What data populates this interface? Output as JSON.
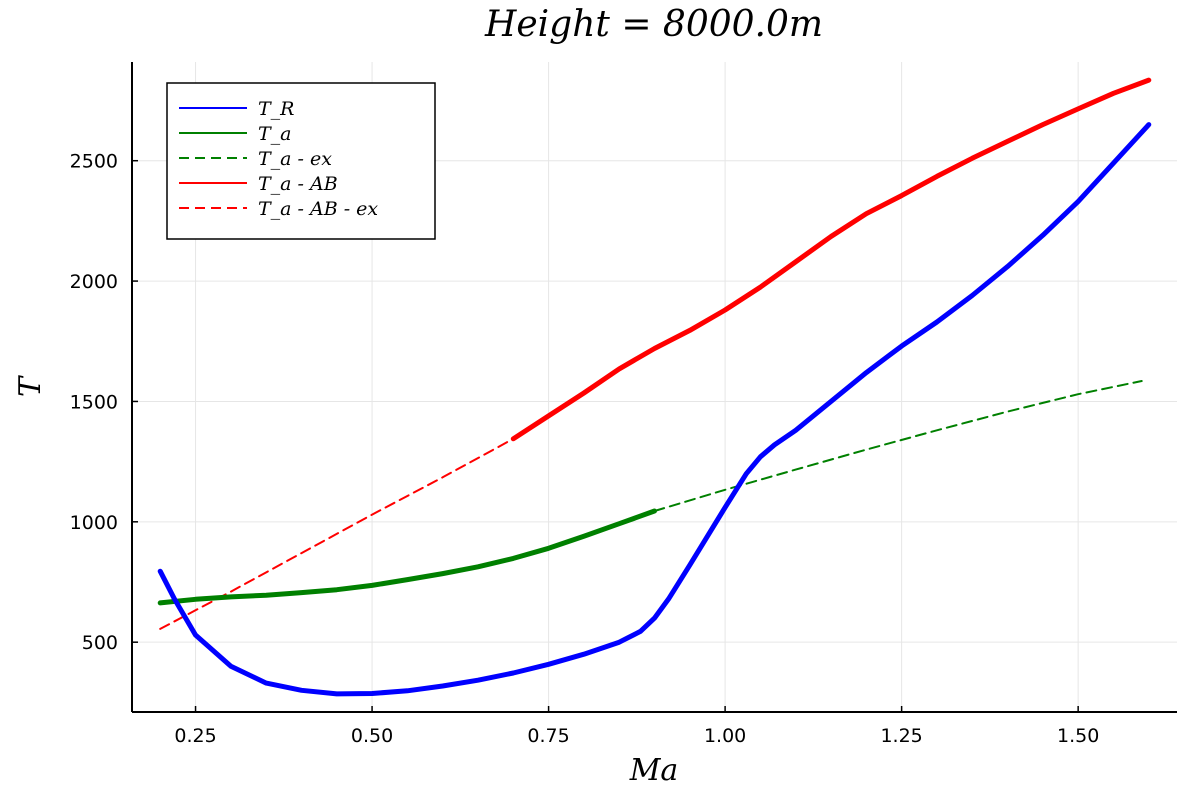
{
  "chart_data": {
    "type": "line",
    "title": "Height = 8000.0m",
    "xlabel": "Ma",
    "ylabel": "T",
    "xlim": [
      0.16,
      1.64
    ],
    "ylim": [
      210,
      2910
    ],
    "xticks": [
      0.25,
      0.5,
      0.75,
      1.0,
      1.25,
      1.5
    ],
    "xtick_labels": [
      "0.25",
      "0.50",
      "0.75",
      "1.00",
      "1.25",
      "1.50"
    ],
    "yticks": [
      500,
      1000,
      1500,
      2000,
      2500
    ],
    "ytick_labels": [
      "500",
      "1000",
      "1500",
      "2000",
      "2500"
    ],
    "grid": true,
    "legend_position": "top-left",
    "series": [
      {
        "name": "T_R",
        "color": "#0000ff",
        "style": "solid",
        "width": "thick",
        "x": [
          0.2,
          0.22,
          0.25,
          0.3,
          0.35,
          0.4,
          0.45,
          0.5,
          0.55,
          0.6,
          0.65,
          0.7,
          0.75,
          0.8,
          0.85,
          0.88,
          0.9,
          0.92,
          0.95,
          1.0,
          1.03,
          1.05,
          1.07,
          1.1,
          1.15,
          1.2,
          1.25,
          1.3,
          1.35,
          1.4,
          1.45,
          1.5,
          1.55,
          1.6
        ],
        "y": [
          795,
          680,
          530,
          400,
          330,
          300,
          285,
          287,
          298,
          318,
          342,
          372,
          408,
          450,
          500,
          545,
          600,
          680,
          820,
          1060,
          1200,
          1270,
          1320,
          1380,
          1500,
          1620,
          1730,
          1830,
          1940,
          2060,
          2190,
          2330,
          2490,
          2650
        ]
      },
      {
        "name": "T_a",
        "color": "#008000",
        "style": "solid",
        "width": "thick",
        "x": [
          0.2,
          0.25,
          0.3,
          0.35,
          0.4,
          0.45,
          0.5,
          0.55,
          0.6,
          0.65,
          0.7,
          0.75,
          0.8,
          0.85,
          0.9
        ],
        "y": [
          663,
          678,
          688,
          695,
          706,
          718,
          736,
          760,
          785,
          813,
          848,
          890,
          940,
          992,
          1045
        ]
      },
      {
        "name": "T_a - ex",
        "color": "#008000",
        "style": "dashed",
        "width": "thin",
        "x": [
          0.9,
          1.0,
          1.1,
          1.2,
          1.3,
          1.4,
          1.5,
          1.59
        ],
        "y": [
          1045,
          1133,
          1217,
          1300,
          1380,
          1458,
          1530,
          1585
        ]
      },
      {
        "name": "T_a - AB",
        "color": "#ff0000",
        "style": "solid",
        "width": "thick",
        "x": [
          0.7,
          0.75,
          0.8,
          0.85,
          0.9,
          0.95,
          1.0,
          1.05,
          1.1,
          1.15,
          1.2,
          1.25,
          1.3,
          1.35,
          1.4,
          1.45,
          1.5,
          1.55,
          1.6
        ],
        "y": [
          1345,
          1440,
          1535,
          1635,
          1720,
          1795,
          1880,
          1975,
          2080,
          2185,
          2280,
          2355,
          2435,
          2510,
          2580,
          2650,
          2715,
          2780,
          2835
        ]
      },
      {
        "name": "T_a - AB - ex",
        "color": "#ff0000",
        "style": "dashed",
        "width": "thin",
        "x": [
          0.2,
          0.3,
          0.4,
          0.5,
          0.6,
          0.7
        ],
        "y": [
          555,
          710,
          870,
          1030,
          1185,
          1345
        ]
      }
    ]
  }
}
